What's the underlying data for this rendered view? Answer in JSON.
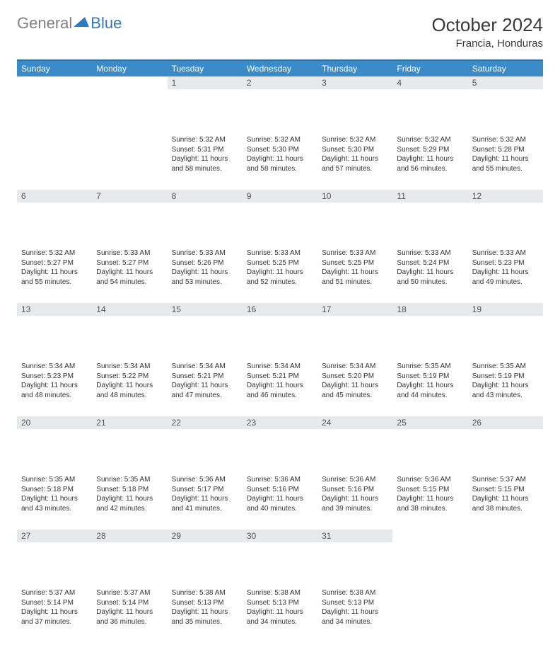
{
  "logo": {
    "gray": "General",
    "blue": "Blue"
  },
  "title": "October 2024",
  "location": "Francia, Honduras",
  "colors": {
    "header_bg": "#3b8bc9",
    "header_border": "#2f6ea0",
    "daynum_bg": "#e8e9ea",
    "text": "#333333",
    "logo_gray": "#808080",
    "logo_blue": "#2f7ac0"
  },
  "weekdays": [
    "Sunday",
    "Monday",
    "Tuesday",
    "Wednesday",
    "Thursday",
    "Friday",
    "Saturday"
  ],
  "weeks": [
    [
      {
        "day": "",
        "sunrise": "",
        "sunset": "",
        "daylight": ""
      },
      {
        "day": "",
        "sunrise": "",
        "sunset": "",
        "daylight": ""
      },
      {
        "day": "1",
        "sunrise": "Sunrise: 5:32 AM",
        "sunset": "Sunset: 5:31 PM",
        "daylight": "Daylight: 11 hours and 58 minutes."
      },
      {
        "day": "2",
        "sunrise": "Sunrise: 5:32 AM",
        "sunset": "Sunset: 5:30 PM",
        "daylight": "Daylight: 11 hours and 58 minutes."
      },
      {
        "day": "3",
        "sunrise": "Sunrise: 5:32 AM",
        "sunset": "Sunset: 5:30 PM",
        "daylight": "Daylight: 11 hours and 57 minutes."
      },
      {
        "day": "4",
        "sunrise": "Sunrise: 5:32 AM",
        "sunset": "Sunset: 5:29 PM",
        "daylight": "Daylight: 11 hours and 56 minutes."
      },
      {
        "day": "5",
        "sunrise": "Sunrise: 5:32 AM",
        "sunset": "Sunset: 5:28 PM",
        "daylight": "Daylight: 11 hours and 55 minutes."
      }
    ],
    [
      {
        "day": "6",
        "sunrise": "Sunrise: 5:32 AM",
        "sunset": "Sunset: 5:27 PM",
        "daylight": "Daylight: 11 hours and 55 minutes."
      },
      {
        "day": "7",
        "sunrise": "Sunrise: 5:33 AM",
        "sunset": "Sunset: 5:27 PM",
        "daylight": "Daylight: 11 hours and 54 minutes."
      },
      {
        "day": "8",
        "sunrise": "Sunrise: 5:33 AM",
        "sunset": "Sunset: 5:26 PM",
        "daylight": "Daylight: 11 hours and 53 minutes."
      },
      {
        "day": "9",
        "sunrise": "Sunrise: 5:33 AM",
        "sunset": "Sunset: 5:25 PM",
        "daylight": "Daylight: 11 hours and 52 minutes."
      },
      {
        "day": "10",
        "sunrise": "Sunrise: 5:33 AM",
        "sunset": "Sunset: 5:25 PM",
        "daylight": "Daylight: 11 hours and 51 minutes."
      },
      {
        "day": "11",
        "sunrise": "Sunrise: 5:33 AM",
        "sunset": "Sunset: 5:24 PM",
        "daylight": "Daylight: 11 hours and 50 minutes."
      },
      {
        "day": "12",
        "sunrise": "Sunrise: 5:33 AM",
        "sunset": "Sunset: 5:23 PM",
        "daylight": "Daylight: 11 hours and 49 minutes."
      }
    ],
    [
      {
        "day": "13",
        "sunrise": "Sunrise: 5:34 AM",
        "sunset": "Sunset: 5:23 PM",
        "daylight": "Daylight: 11 hours and 48 minutes."
      },
      {
        "day": "14",
        "sunrise": "Sunrise: 5:34 AM",
        "sunset": "Sunset: 5:22 PM",
        "daylight": "Daylight: 11 hours and 48 minutes."
      },
      {
        "day": "15",
        "sunrise": "Sunrise: 5:34 AM",
        "sunset": "Sunset: 5:21 PM",
        "daylight": "Daylight: 11 hours and 47 minutes."
      },
      {
        "day": "16",
        "sunrise": "Sunrise: 5:34 AM",
        "sunset": "Sunset: 5:21 PM",
        "daylight": "Daylight: 11 hours and 46 minutes."
      },
      {
        "day": "17",
        "sunrise": "Sunrise: 5:34 AM",
        "sunset": "Sunset: 5:20 PM",
        "daylight": "Daylight: 11 hours and 45 minutes."
      },
      {
        "day": "18",
        "sunrise": "Sunrise: 5:35 AM",
        "sunset": "Sunset: 5:19 PM",
        "daylight": "Daylight: 11 hours and 44 minutes."
      },
      {
        "day": "19",
        "sunrise": "Sunrise: 5:35 AM",
        "sunset": "Sunset: 5:19 PM",
        "daylight": "Daylight: 11 hours and 43 minutes."
      }
    ],
    [
      {
        "day": "20",
        "sunrise": "Sunrise: 5:35 AM",
        "sunset": "Sunset: 5:18 PM",
        "daylight": "Daylight: 11 hours and 43 minutes."
      },
      {
        "day": "21",
        "sunrise": "Sunrise: 5:35 AM",
        "sunset": "Sunset: 5:18 PM",
        "daylight": "Daylight: 11 hours and 42 minutes."
      },
      {
        "day": "22",
        "sunrise": "Sunrise: 5:36 AM",
        "sunset": "Sunset: 5:17 PM",
        "daylight": "Daylight: 11 hours and 41 minutes."
      },
      {
        "day": "23",
        "sunrise": "Sunrise: 5:36 AM",
        "sunset": "Sunset: 5:16 PM",
        "daylight": "Daylight: 11 hours and 40 minutes."
      },
      {
        "day": "24",
        "sunrise": "Sunrise: 5:36 AM",
        "sunset": "Sunset: 5:16 PM",
        "daylight": "Daylight: 11 hours and 39 minutes."
      },
      {
        "day": "25",
        "sunrise": "Sunrise: 5:36 AM",
        "sunset": "Sunset: 5:15 PM",
        "daylight": "Daylight: 11 hours and 38 minutes."
      },
      {
        "day": "26",
        "sunrise": "Sunrise: 5:37 AM",
        "sunset": "Sunset: 5:15 PM",
        "daylight": "Daylight: 11 hours and 38 minutes."
      }
    ],
    [
      {
        "day": "27",
        "sunrise": "Sunrise: 5:37 AM",
        "sunset": "Sunset: 5:14 PM",
        "daylight": "Daylight: 11 hours and 37 minutes."
      },
      {
        "day": "28",
        "sunrise": "Sunrise: 5:37 AM",
        "sunset": "Sunset: 5:14 PM",
        "daylight": "Daylight: 11 hours and 36 minutes."
      },
      {
        "day": "29",
        "sunrise": "Sunrise: 5:38 AM",
        "sunset": "Sunset: 5:13 PM",
        "daylight": "Daylight: 11 hours and 35 minutes."
      },
      {
        "day": "30",
        "sunrise": "Sunrise: 5:38 AM",
        "sunset": "Sunset: 5:13 PM",
        "daylight": "Daylight: 11 hours and 34 minutes."
      },
      {
        "day": "31",
        "sunrise": "Sunrise: 5:38 AM",
        "sunset": "Sunset: 5:13 PM",
        "daylight": "Daylight: 11 hours and 34 minutes."
      },
      {
        "day": "",
        "sunrise": "",
        "sunset": "",
        "daylight": ""
      },
      {
        "day": "",
        "sunrise": "",
        "sunset": "",
        "daylight": ""
      }
    ]
  ]
}
